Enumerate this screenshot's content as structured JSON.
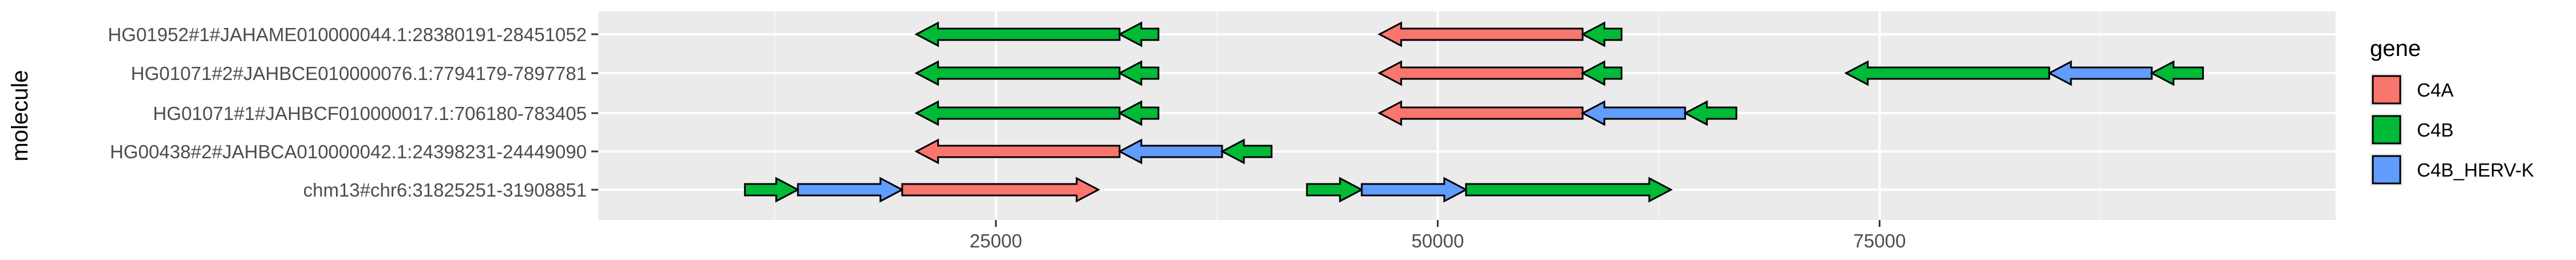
{
  "chart_data": {
    "type": "gene-arrow-map",
    "xlabel": "",
    "ylabel": "molecule",
    "xlim": [
      2500,
      100800
    ],
    "x_ticks": [
      25000,
      50000,
      75000
    ],
    "x_tick_labels": [
      "25000",
      "50000",
      "75000"
    ],
    "grid": true,
    "legend": {
      "title": "gene",
      "position": "right",
      "entries": [
        {
          "label": "C4A",
          "color": "#F8766D"
        },
        {
          "label": "C4B",
          "color": "#00BA38"
        },
        {
          "label": "C4B_HERV-K",
          "color": "#619CFF"
        }
      ]
    },
    "molecules": [
      "HG01952#1#JAHAME010000044.1:28380191-28451052",
      "HG01071#2#JAHBCE010000076.1:7794179-7897781",
      "HG01071#1#JAHBCF010000017.1:706180-783405",
      "HG00438#2#JAHBCA010000042.1:24398231-24449090",
      "chm13#chr6:31825251-31908851"
    ],
    "genes": [
      {
        "molecule": 0,
        "gene": "C4B",
        "start": 32000,
        "end": 20500,
        "strand": "-"
      },
      {
        "molecule": 0,
        "gene": "C4B",
        "start": 34200,
        "end": 32000,
        "strand": "-"
      },
      {
        "molecule": 0,
        "gene": "C4A",
        "start": 58200,
        "end": 46700,
        "strand": "-"
      },
      {
        "molecule": 0,
        "gene": "C4B",
        "start": 60400,
        "end": 58200,
        "strand": "-"
      },
      {
        "molecule": 1,
        "gene": "C4B",
        "start": 32000,
        "end": 20500,
        "strand": "-"
      },
      {
        "molecule": 1,
        "gene": "C4B",
        "start": 34200,
        "end": 32000,
        "strand": "-"
      },
      {
        "molecule": 1,
        "gene": "C4A",
        "start": 58200,
        "end": 46700,
        "strand": "-"
      },
      {
        "molecule": 1,
        "gene": "C4B",
        "start": 60400,
        "end": 58200,
        "strand": "-"
      },
      {
        "molecule": 1,
        "gene": "C4B",
        "start": 84600,
        "end": 73100,
        "strand": "-"
      },
      {
        "molecule": 1,
        "gene": "C4B_HERV-K",
        "start": 90400,
        "end": 84600,
        "strand": "-"
      },
      {
        "molecule": 1,
        "gene": "C4B",
        "start": 93300,
        "end": 90400,
        "strand": "-"
      },
      {
        "molecule": 2,
        "gene": "C4B",
        "start": 32000,
        "end": 20500,
        "strand": "-"
      },
      {
        "molecule": 2,
        "gene": "C4B",
        "start": 34200,
        "end": 32000,
        "strand": "-"
      },
      {
        "molecule": 2,
        "gene": "C4A",
        "start": 58200,
        "end": 46700,
        "strand": "-"
      },
      {
        "molecule": 2,
        "gene": "C4B_HERV-K",
        "start": 64000,
        "end": 58200,
        "strand": "-"
      },
      {
        "molecule": 2,
        "gene": "C4B",
        "start": 66900,
        "end": 64000,
        "strand": "-"
      },
      {
        "molecule": 3,
        "gene": "C4A",
        "start": 32000,
        "end": 20500,
        "strand": "-"
      },
      {
        "molecule": 3,
        "gene": "C4B_HERV-K",
        "start": 37800,
        "end": 32000,
        "strand": "-"
      },
      {
        "molecule": 3,
        "gene": "C4B",
        "start": 40600,
        "end": 37800,
        "strand": "-"
      },
      {
        "molecule": 4,
        "gene": "C4B",
        "start": 10800,
        "end": 13800,
        "strand": "+"
      },
      {
        "molecule": 4,
        "gene": "C4B_HERV-K",
        "start": 13800,
        "end": 19700,
        "strand": "+"
      },
      {
        "molecule": 4,
        "gene": "C4A",
        "start": 19700,
        "end": 30800,
        "strand": "+"
      },
      {
        "molecule": 4,
        "gene": "C4B",
        "start": 42600,
        "end": 45700,
        "strand": "+"
      },
      {
        "molecule": 4,
        "gene": "C4B_HERV-K",
        "start": 45700,
        "end": 51600,
        "strand": "+"
      },
      {
        "molecule": 4,
        "gene": "C4B",
        "start": 51600,
        "end": 63200,
        "strand": "+"
      }
    ]
  }
}
